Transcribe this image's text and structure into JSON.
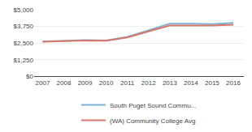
{
  "chart_data": {
    "type": "line",
    "x": [
      2007,
      2008,
      2009,
      2010,
      2011,
      2012,
      2013,
      2014,
      2015,
      2016
    ],
    "series": [
      {
        "name": "South Puget Sound Commu...",
        "color": "#7ab3d4",
        "values": [
          2620,
          2680,
          2730,
          2700,
          2970,
          3450,
          3960,
          3960,
          3930,
          4020
        ]
      },
      {
        "name": "(WA) Community College Avg",
        "color": "#d9766a",
        "values": [
          2610,
          2650,
          2700,
          2680,
          2920,
          3380,
          3820,
          3820,
          3820,
          3880
        ]
      }
    ],
    "xlim": [
      2006.6,
      2016.5
    ],
    "xticks": [
      2007,
      2008,
      2009,
      2010,
      2011,
      2012,
      2013,
      2014,
      2015,
      2016
    ],
    "ylim": [
      0,
      5000
    ],
    "yticks": [
      {
        "value": 0,
        "label": "$0"
      },
      {
        "value": 1250,
        "label": "$1,250"
      },
      {
        "value": 2500,
        "label": "$2,500"
      },
      {
        "value": 3750,
        "label": "$3,750"
      },
      {
        "value": 5000,
        "label": "$5,000"
      }
    ],
    "grid": true,
    "legend": "bottom"
  }
}
